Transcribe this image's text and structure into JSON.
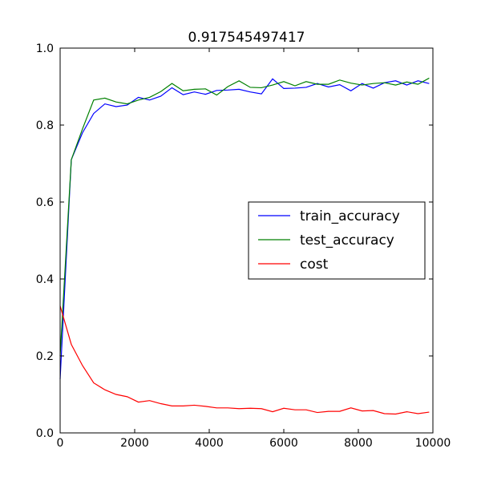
{
  "chart_data": {
    "type": "line",
    "title": "0.917545497417",
    "xlabel": "",
    "ylabel": "",
    "xlim": [
      0,
      10000
    ],
    "ylim": [
      0.0,
      1.0
    ],
    "x_ticks": [
      0,
      2000,
      4000,
      6000,
      8000,
      10000
    ],
    "x_tick_labels": [
      "0",
      "2000",
      "4000",
      "6000",
      "8000",
      "10000"
    ],
    "y_ticks": [
      0.0,
      0.2,
      0.4,
      0.6,
      0.8,
      1.0
    ],
    "y_tick_labels": [
      "0.0",
      "0.2",
      "0.4",
      "0.6",
      "0.8",
      "1.0"
    ],
    "grid": false,
    "legend_position": "center-right",
    "x": [
      0,
      300,
      600,
      900,
      1200,
      1500,
      1800,
      2100,
      2400,
      2700,
      3000,
      3300,
      3600,
      3900,
      4200,
      4500,
      4800,
      5100,
      5400,
      5700,
      6000,
      6300,
      6600,
      6900,
      7200,
      7500,
      7800,
      8100,
      8400,
      8700,
      9000,
      9300,
      9600,
      9900
    ],
    "series": [
      {
        "name": "train_accuracy",
        "color": "#0000ff",
        "values": [
          0.14,
          0.71,
          0.78,
          0.83,
          0.855,
          0.848,
          0.852,
          0.872,
          0.865,
          0.875,
          0.897,
          0.879,
          0.886,
          0.88,
          0.89,
          0.891,
          0.893,
          0.886,
          0.881,
          0.92,
          0.895,
          0.896,
          0.898,
          0.908,
          0.899,
          0.905,
          0.889,
          0.908,
          0.896,
          0.91,
          0.915,
          0.904,
          0.915,
          0.908
        ]
      },
      {
        "name": "test_accuracy",
        "color": "#008000",
        "values": [
          0.2,
          0.71,
          0.79,
          0.865,
          0.87,
          0.86,
          0.855,
          0.865,
          0.872,
          0.887,
          0.908,
          0.889,
          0.893,
          0.894,
          0.878,
          0.9,
          0.915,
          0.898,
          0.897,
          0.904,
          0.913,
          0.902,
          0.913,
          0.906,
          0.906,
          0.917,
          0.909,
          0.904,
          0.908,
          0.91,
          0.904,
          0.912,
          0.906,
          0.922
        ]
      },
      {
        "name": "cost",
        "color": "#ff0000",
        "values": [
          0.33,
          0.23,
          0.175,
          0.13,
          0.112,
          0.1,
          0.094,
          0.08,
          0.084,
          0.076,
          0.07,
          0.07,
          0.072,
          0.069,
          0.065,
          0.065,
          0.063,
          0.064,
          0.063,
          0.055,
          0.064,
          0.06,
          0.06,
          0.053,
          0.056,
          0.056,
          0.065,
          0.057,
          0.058,
          0.05,
          0.049,
          0.055,
          0.05,
          0.054
        ]
      }
    ]
  }
}
